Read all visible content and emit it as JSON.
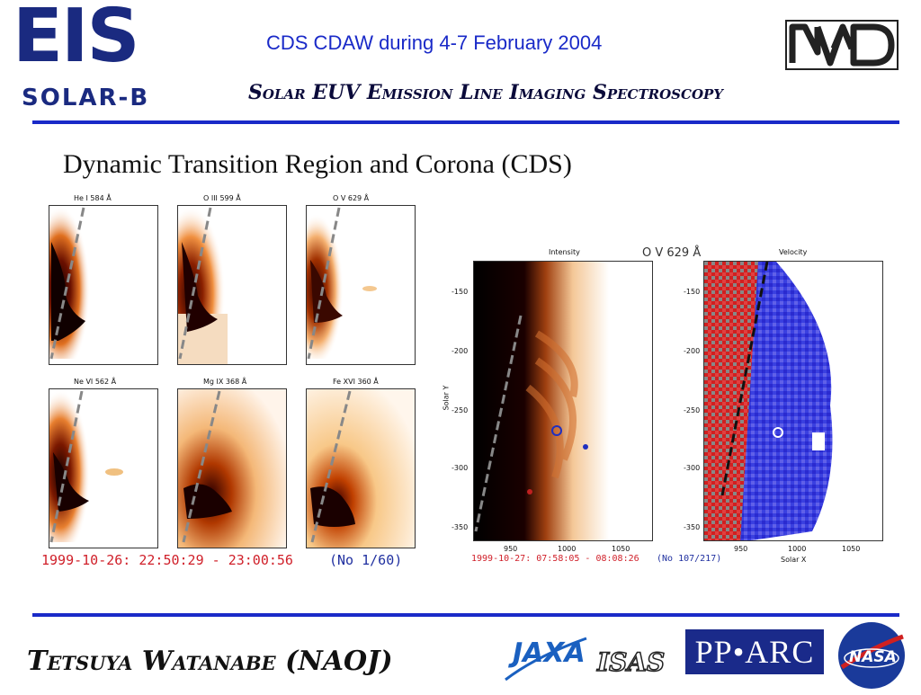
{
  "header": {
    "logo_main": "EIS",
    "logo_sub": "SOLAR-B",
    "date_line": "CDS CDAW during 4-7 February 2004",
    "subtitle": "Solar EUV Emission Line Imaging Spectroscopy",
    "partner_logo": "NAO"
  },
  "slide_title": "Dynamic Transition Region and Corona (CDS)",
  "left_figure": {
    "panels": [
      {
        "label": "He I 584 Å"
      },
      {
        "label": "O III 599 Å"
      },
      {
        "label": "O V 629 Å"
      },
      {
        "label": "Ne VI 562 Å"
      },
      {
        "label": "Mg IX 368 Å"
      },
      {
        "label": "Fe XVI 360 Å"
      }
    ],
    "timestamp": "1999-10-26: 22:50:29 - 23:00:56",
    "frame": "(No 1/60)"
  },
  "right_figure": {
    "title": "O V 629 Å",
    "left_panel_label": "Intensity",
    "right_panel_label": "Velocity",
    "y_axis_label": "Solar Y",
    "x_axis_label": "Solar X",
    "y_ticks": [
      "-150",
      "-200",
      "-250",
      "-300",
      "-350"
    ],
    "x_ticks": [
      "950",
      "1000",
      "1050"
    ],
    "timestamp": "1999-10-27: 07:58:05 - 08:08:26",
    "frame": "(No 107/217)"
  },
  "footer": {
    "author": "Tetsuya Watanabe (NAOJ)",
    "logos": [
      "JAXA",
      "ISAS",
      "PPARC",
      "NASA"
    ],
    "pparc_text": "PP•ARC",
    "nasa_text": "NASA",
    "jaxa_text": "JAXA",
    "isas_text": "ISAS"
  },
  "colors": {
    "accent_blue": "#1a2ac8",
    "logo_navy": "#1a2a80",
    "timestamp_red": "#d0202a"
  }
}
